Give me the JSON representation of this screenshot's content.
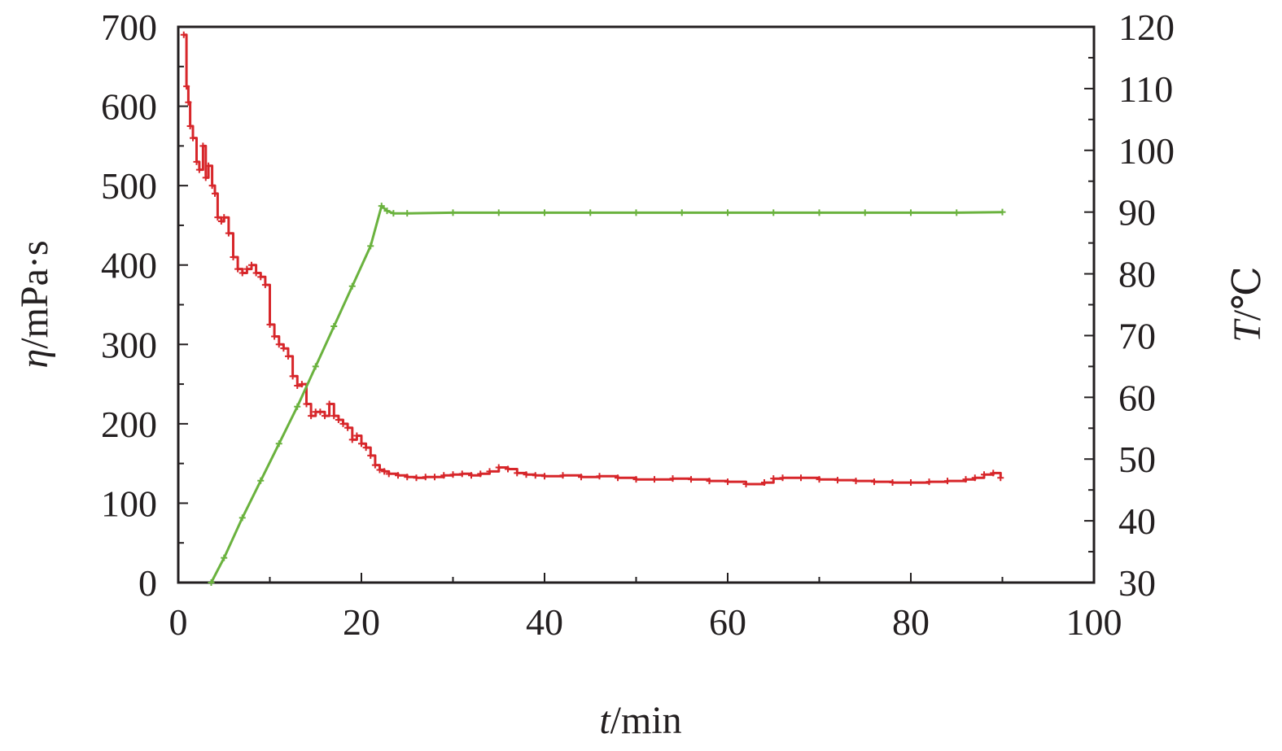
{
  "chart_data": {
    "type": "line",
    "x_axis": {
      "label_var": "t",
      "label_unit": "/min",
      "range": [
        0,
        100
      ],
      "ticks": [
        0,
        20,
        40,
        60,
        80,
        100
      ]
    },
    "y_left": {
      "label_var": "η",
      "label_unit": "/mPa·s",
      "range": [
        0,
        700
      ],
      "ticks": [
        0,
        100,
        200,
        300,
        400,
        500,
        600,
        700
      ]
    },
    "y_right": {
      "label_var": "T",
      "label_unit": "/℃",
      "range": [
        30,
        120
      ],
      "ticks": [
        30,
        40,
        50,
        60,
        70,
        80,
        90,
        100,
        110,
        120
      ]
    },
    "grid": false,
    "legend": "none",
    "series": [
      {
        "axis": "left",
        "color": "#d7262a",
        "x": [
          0.6,
          0.9,
          1.1,
          1.3,
          1.6,
          2.0,
          2.3,
          2.7,
          3.0,
          3.3,
          3.7,
          4.0,
          4.3,
          4.7,
          5.0,
          5.5,
          6.0,
          6.5,
          7.0,
          7.5,
          8.0,
          8.5,
          9.0,
          9.5,
          10.0,
          10.5,
          11.0,
          11.5,
          12.0,
          12.5,
          13.0,
          13.5,
          14.0,
          14.5,
          15.0,
          15.5,
          16.0,
          16.5,
          17.0,
          17.5,
          18.0,
          18.5,
          19.0,
          19.5,
          20.0,
          20.5,
          21.0,
          21.5,
          22.0,
          22.5,
          23.0,
          24.0,
          25.0,
          26.0,
          27.0,
          28.0,
          29.0,
          30.0,
          31.0,
          32.0,
          33.0,
          34.0,
          35.0,
          36.0,
          37.0,
          38.0,
          39.0,
          40.0,
          42.0,
          44.0,
          46.0,
          48.0,
          50.0,
          52.0,
          54.0,
          56.0,
          58.0,
          60.0,
          62.0,
          64.0,
          65.0,
          66.0,
          68.0,
          70.0,
          72.0,
          74.0,
          76.0,
          78.0,
          80.0,
          82.0,
          84.0,
          86.0,
          87.0,
          88.0,
          89.0,
          89.8
        ],
        "y": [
          690,
          625,
          605,
          575,
          560,
          530,
          520,
          550,
          510,
          525,
          500,
          490,
          460,
          455,
          460,
          440,
          410,
          395,
          390,
          395,
          400,
          390,
          385,
          375,
          325,
          310,
          300,
          295,
          285,
          260,
          248,
          250,
          225,
          210,
          215,
          215,
          210,
          225,
          210,
          205,
          200,
          195,
          180,
          185,
          175,
          170,
          160,
          148,
          142,
          140,
          137,
          135,
          133,
          132,
          133,
          133,
          135,
          136,
          137,
          135,
          137,
          140,
          145,
          143,
          138,
          136,
          135,
          134,
          135,
          133,
          134,
          132,
          130,
          130,
          131,
          130,
          128,
          127,
          124,
          126,
          131,
          132,
          132,
          130,
          129,
          128,
          127,
          126,
          126,
          127,
          128,
          130,
          132,
          136,
          138,
          132
        ]
      },
      {
        "axis": "right",
        "color": "#6ab23e",
        "x": [
          3.6,
          5.0,
          7.0,
          9.0,
          11.0,
          13.0,
          15.0,
          17.0,
          19.0,
          21.0,
          22.2,
          22.8,
          23.5,
          25.0,
          30.0,
          35.0,
          40.0,
          45.0,
          50.0,
          55.0,
          60.0,
          65.0,
          70.0,
          75.0,
          80.0,
          85.0,
          90.0
        ],
        "y": [
          30.0,
          34.0,
          40.5,
          46.5,
          52.5,
          58.5,
          65.0,
          71.5,
          78.0,
          84.5,
          91.0,
          90.2,
          89.8,
          89.8,
          89.9,
          89.9,
          89.9,
          89.9,
          89.9,
          89.9,
          89.9,
          89.9,
          89.9,
          89.9,
          89.9,
          89.9,
          90.0
        ]
      }
    ]
  }
}
